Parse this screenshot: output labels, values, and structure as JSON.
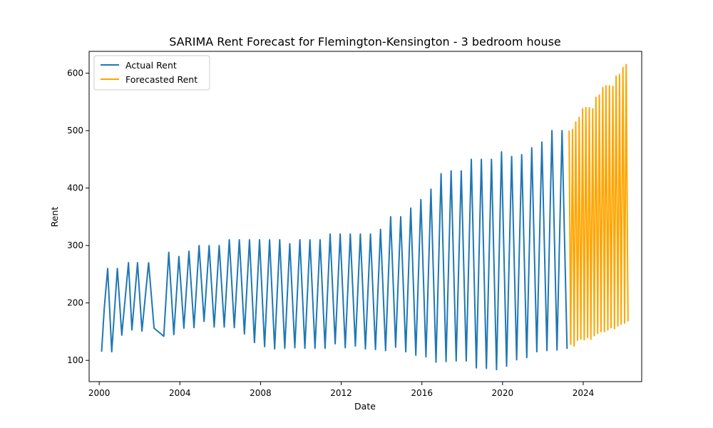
{
  "chart_data": {
    "type": "line",
    "title": "SARIMA Rent Forecast for Flemington-Kensington - 3 bedroom house",
    "xlabel": "Date",
    "ylabel": "Rent",
    "xlim": [
      1999.5,
      2026.9
    ],
    "ylim": [
      63,
      638
    ],
    "x_ticks": [
      2000,
      2004,
      2008,
      2012,
      2016,
      2020,
      2024
    ],
    "x_tick_labels": [
      "2000",
      "2004",
      "2008",
      "2012",
      "2016",
      "2020",
      "2024"
    ],
    "y_ticks": [
      100,
      200,
      300,
      400,
      500,
      600
    ],
    "y_tick_labels": [
      "100",
      "200",
      "300",
      "400",
      "500",
      "600"
    ],
    "grid": false,
    "legend_position": "upper-left",
    "series": [
      {
        "name": "Actual Rent",
        "color": "#1f77b4",
        "points": [
          [
            2000.12,
            115
          ],
          [
            2000.25,
            190
          ],
          [
            2000.42,
            260
          ],
          [
            2000.62,
            115
          ],
          [
            2000.9,
            260
          ],
          [
            2001.12,
            144
          ],
          [
            2001.45,
            270
          ],
          [
            2001.62,
            153
          ],
          [
            2001.9,
            270
          ],
          [
            2002.12,
            151
          ],
          [
            2002.45,
            270
          ],
          [
            2002.72,
            156
          ],
          [
            2003.2,
            142
          ],
          [
            2003.45,
            288
          ],
          [
            2003.7,
            145
          ],
          [
            2003.95,
            281
          ],
          [
            2004.2,
            156
          ],
          [
            2004.45,
            290
          ],
          [
            2004.7,
            157
          ],
          [
            2004.95,
            300
          ],
          [
            2005.2,
            168
          ],
          [
            2005.45,
            300
          ],
          [
            2005.7,
            158
          ],
          [
            2005.95,
            300
          ],
          [
            2006.2,
            158
          ],
          [
            2006.45,
            310
          ],
          [
            2006.7,
            157
          ],
          [
            2006.95,
            310
          ],
          [
            2007.2,
            146
          ],
          [
            2007.45,
            310
          ],
          [
            2007.7,
            131
          ],
          [
            2007.95,
            310
          ],
          [
            2008.2,
            124
          ],
          [
            2008.45,
            310
          ],
          [
            2008.7,
            120
          ],
          [
            2008.95,
            310
          ],
          [
            2009.2,
            121
          ],
          [
            2009.45,
            303
          ],
          [
            2009.7,
            122
          ],
          [
            2009.95,
            310
          ],
          [
            2010.2,
            121
          ],
          [
            2010.45,
            310
          ],
          [
            2010.7,
            121
          ],
          [
            2010.95,
            310
          ],
          [
            2011.2,
            121
          ],
          [
            2011.45,
            320
          ],
          [
            2011.7,
            129
          ],
          [
            2011.95,
            320
          ],
          [
            2012.2,
            122
          ],
          [
            2012.45,
            320
          ],
          [
            2012.7,
            125
          ],
          [
            2012.95,
            320
          ],
          [
            2013.2,
            120
          ],
          [
            2013.45,
            320
          ],
          [
            2013.7,
            119
          ],
          [
            2013.95,
            328
          ],
          [
            2014.2,
            117
          ],
          [
            2014.45,
            350
          ],
          [
            2014.7,
            123
          ],
          [
            2014.95,
            350
          ],
          [
            2015.2,
            115
          ],
          [
            2015.45,
            365
          ],
          [
            2015.7,
            109
          ],
          [
            2015.95,
            380
          ],
          [
            2016.2,
            106
          ],
          [
            2016.45,
            398
          ],
          [
            2016.7,
            97
          ],
          [
            2016.95,
            425
          ],
          [
            2017.2,
            98
          ],
          [
            2017.45,
            430
          ],
          [
            2017.7,
            99
          ],
          [
            2017.95,
            430
          ],
          [
            2018.2,
            99
          ],
          [
            2018.45,
            450
          ],
          [
            2018.7,
            87
          ],
          [
            2018.95,
            450
          ],
          [
            2019.2,
            86
          ],
          [
            2019.45,
            450
          ],
          [
            2019.7,
            84
          ],
          [
            2019.95,
            463
          ],
          [
            2020.2,
            90
          ],
          [
            2020.45,
            455
          ],
          [
            2020.7,
            101
          ],
          [
            2020.95,
            458
          ],
          [
            2021.2,
            105
          ],
          [
            2021.45,
            470
          ],
          [
            2021.7,
            115
          ],
          [
            2021.95,
            480
          ],
          [
            2022.2,
            117
          ],
          [
            2022.45,
            500
          ],
          [
            2022.7,
            118
          ],
          [
            2022.95,
            500
          ],
          [
            2023.2,
            120
          ]
        ]
      },
      {
        "name": "Forecasted Rent",
        "color": "#ffa500",
        "points": [
          [
            2023.3,
            500
          ],
          [
            2023.38,
            128
          ],
          [
            2023.47,
            502
          ],
          [
            2023.55,
            125
          ],
          [
            2023.63,
            515
          ],
          [
            2023.72,
            135
          ],
          [
            2023.8,
            523
          ],
          [
            2023.88,
            137
          ],
          [
            2023.97,
            538
          ],
          [
            2024.05,
            136
          ],
          [
            2024.13,
            540
          ],
          [
            2024.22,
            140
          ],
          [
            2024.3,
            540
          ],
          [
            2024.38,
            137
          ],
          [
            2024.47,
            538
          ],
          [
            2024.55,
            143
          ],
          [
            2024.63,
            558
          ],
          [
            2024.72,
            147
          ],
          [
            2024.8,
            562
          ],
          [
            2024.88,
            150
          ],
          [
            2024.97,
            575
          ],
          [
            2025.05,
            150
          ],
          [
            2025.13,
            578
          ],
          [
            2025.22,
            153
          ],
          [
            2025.3,
            578
          ],
          [
            2025.38,
            157
          ],
          [
            2025.47,
            577
          ],
          [
            2025.55,
            155
          ],
          [
            2025.63,
            595
          ],
          [
            2025.72,
            160
          ],
          [
            2025.8,
            598
          ],
          [
            2025.88,
            163
          ],
          [
            2025.97,
            610
          ],
          [
            2026.05,
            165
          ],
          [
            2026.13,
            615
          ],
          [
            2026.22,
            168
          ]
        ]
      }
    ]
  }
}
